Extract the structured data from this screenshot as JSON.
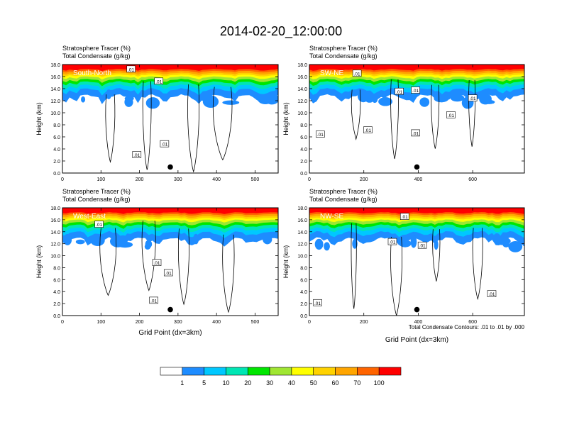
{
  "title": "2014-02-20_12:00:00",
  "xlabel": "Grid Point (dx=3km)",
  "ylabel": "Height (km)",
  "header_line1": "Stratosphere Tracer   (%)",
  "header_line2": "Total Condensate   (g/kg)",
  "contour_note": "Total Condensate Contours: .01 to .01 by .000",
  "colors": {
    "levels": [
      "#ffffff",
      "#1e8cff",
      "#00c8ff",
      "#00e6b4",
      "#00e600",
      "#a0e632",
      "#ffff00",
      "#ffd200",
      "#ffa500",
      "#ff6400",
      "#ff0000"
    ]
  },
  "colorbar": {
    "labels": [
      "1",
      "5",
      "10",
      "20",
      "30",
      "40",
      "50",
      "60",
      "70",
      "100"
    ]
  },
  "chart_data": [
    {
      "type": "heatmap",
      "panel_label": "South-North",
      "ylim": [
        0,
        18
      ],
      "xlim": [
        0,
        560
      ],
      "yticks": [
        "0.0",
        "2.0",
        "4.0",
        "6.0",
        "8.0",
        "10.0",
        "12.0",
        "14.0",
        "16.0",
        "18.0"
      ],
      "xticks": [
        0,
        100,
        200,
        300,
        400,
        500
      ],
      "show_xlabel": false,
      "marker": {
        "x": 280,
        "y": 1.0
      },
      "contour_labels": [
        {
          "x": 178,
          "y": 17.2,
          "text": ".01"
        },
        {
          "x": 250,
          "y": 15.2,
          "text": ".01"
        },
        {
          "x": 265,
          "y": 4.8,
          "text": ".01"
        },
        {
          "x": 193,
          "y": 3.0,
          "text": ".01"
        }
      ]
    },
    {
      "type": "heatmap",
      "panel_label": "SW-NE",
      "ylim": [
        0,
        18
      ],
      "xlim": [
        0,
        790
      ],
      "yticks": [
        "0.0",
        "2.0",
        "4.0",
        "6.0",
        "8.0",
        "10.0",
        "12.0",
        "14.0",
        "16.0",
        "18.0"
      ],
      "xticks": [
        0,
        200,
        400,
        600
      ],
      "show_xlabel": false,
      "marker": {
        "x": 395,
        "y": 1.0
      },
      "contour_labels": [
        {
          "x": 175,
          "y": 16.5,
          "text": ".01"
        },
        {
          "x": 390,
          "y": 13.7,
          "text": ".01"
        },
        {
          "x": 330,
          "y": 13.5,
          "text": ".01"
        },
        {
          "x": 600,
          "y": 12.4,
          "text": ".01"
        },
        {
          "x": 520,
          "y": 9.6,
          "text": ".01"
        },
        {
          "x": 215,
          "y": 7.1,
          "text": ".01"
        },
        {
          "x": 390,
          "y": 6.6,
          "text": ".01"
        },
        {
          "x": 40,
          "y": 6.4,
          "text": ".01"
        }
      ]
    },
    {
      "type": "heatmap",
      "panel_label": "West-East",
      "ylim": [
        0,
        18
      ],
      "xlim": [
        0,
        560
      ],
      "yticks": [
        "0.0",
        "2.0",
        "4.0",
        "6.0",
        "8.0",
        "10.0",
        "12.0",
        "14.0",
        "16.0",
        "18.0"
      ],
      "xticks": [
        0,
        100,
        200,
        300,
        400,
        500
      ],
      "show_xlabel": true,
      "marker": {
        "x": 280,
        "y": 1.0
      },
      "contour_labels": [
        {
          "x": 95,
          "y": 15.2,
          "text": ".01"
        },
        {
          "x": 245,
          "y": 8.8,
          "text": ".01"
        },
        {
          "x": 275,
          "y": 7.1,
          "text": ".01"
        },
        {
          "x": 237,
          "y": 2.5,
          "text": ".01"
        }
      ]
    },
    {
      "type": "heatmap",
      "panel_label": "NW-SE",
      "ylim": [
        0,
        18
      ],
      "xlim": [
        0,
        790
      ],
      "yticks": [
        "0.0",
        "2.0",
        "4.0",
        "6.0",
        "8.0",
        "10.0",
        "12.0",
        "14.0",
        "16.0",
        "18.0"
      ],
      "xticks": [
        0,
        200,
        400,
        600
      ],
      "show_xlabel": true,
      "marker": {
        "x": 395,
        "y": 1.0
      },
      "contour_labels": [
        {
          "x": 350,
          "y": 16.5,
          "text": ".01"
        },
        {
          "x": 305,
          "y": 12.3,
          "text": ".01"
        },
        {
          "x": 415,
          "y": 11.7,
          "text": ".01"
        },
        {
          "x": 670,
          "y": 3.6,
          "text": ".01"
        },
        {
          "x": 30,
          "y": 2.1,
          "text": ".01"
        }
      ]
    }
  ]
}
